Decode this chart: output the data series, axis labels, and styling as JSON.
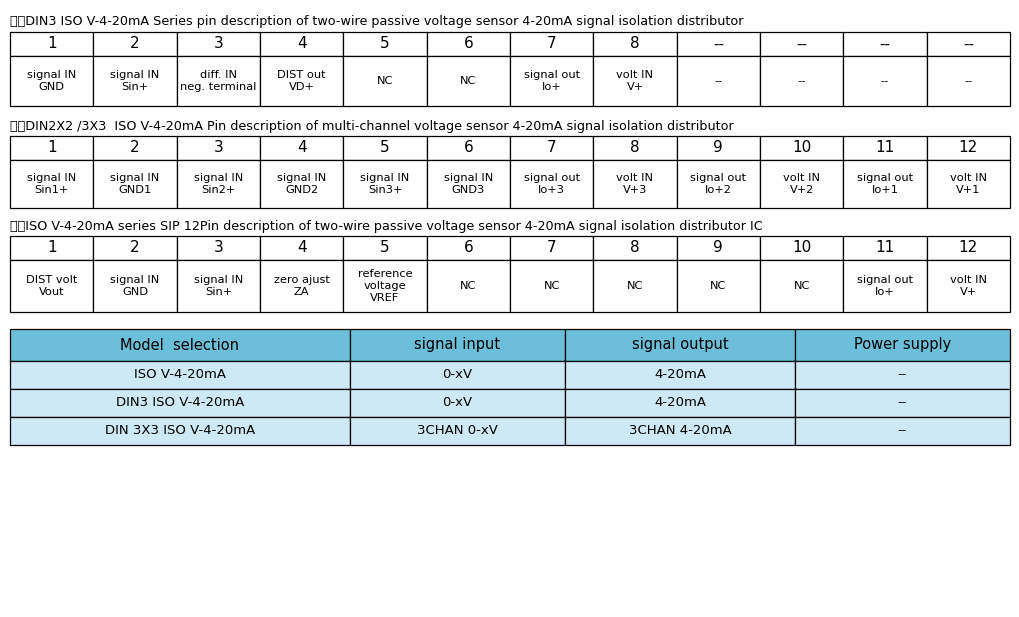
{
  "bg_color": "#ffffff",
  "title1": "一、DIN3 ISO V-4-20mA Series pin description of two-wire passive voltage sensor 4-20mA signal isolation distributor",
  "title2": "二、DIN2X2 /3X3  ISO V-4-20mA Pin description of multi-channel voltage sensor 4-20mA signal isolation distributor",
  "title3": "三、ISO V-4-20mA series SIP 12Pin description of two-wire passive voltage sensor 4-20mA signal isolation distributor IC",
  "table1_header": [
    "1",
    "2",
    "3",
    "4",
    "5",
    "6",
    "7",
    "8",
    "--",
    "--",
    "--",
    "--"
  ],
  "table1_data": [
    [
      "signal IN\nGND",
      "signal IN\nSin+",
      "diff. IN\nneg. terminal",
      "DIST out\nVD+",
      "NC",
      "NC",
      "signal out\nIo+",
      "volt IN\nV+",
      "--",
      "--",
      "--",
      "--"
    ]
  ],
  "table2_header": [
    "1",
    "2",
    "3",
    "4",
    "5",
    "6",
    "7",
    "8",
    "9",
    "10",
    "11",
    "12"
  ],
  "table2_data": [
    [
      "signal IN\nSin1+",
      "signal IN\nGND1",
      "signal IN\nSin2+",
      "signal IN\nGND2",
      "signal IN\nSin3+",
      "signal IN\nGND3",
      "signal out\nIo+3",
      "volt IN\nV+3",
      "signal out\nIo+2",
      "volt IN\nV+2",
      "signal out\nIo+1",
      "volt IN\nV+1"
    ]
  ],
  "table3_header": [
    "1",
    "2",
    "3",
    "4",
    "5",
    "6",
    "7",
    "8",
    "9",
    "10",
    "11",
    "12"
  ],
  "table3_data": [
    [
      "DIST volt\nVout",
      "signal IN\nGND",
      "signal IN\nSin+",
      "zero ajust\nZA",
      "reference\nvoltage\nVREF",
      "NC",
      "NC",
      "NC",
      "NC",
      "NC",
      "signal out\nIo+",
      "volt IN\nV+"
    ]
  ],
  "table4_header": [
    "Model  selection",
    "signal input",
    "signal output",
    "Power supply"
  ],
  "table4_data": [
    [
      "ISO V-4-20mA",
      "0-xV",
      "4-20mA",
      "--"
    ],
    [
      "DIN3 ISO V-4-20mA",
      "0-xV",
      "4-20mA",
      "--"
    ],
    [
      "DIN 3X3 ISO V-4-20mA",
      "3CHAN 0-xV",
      "3CHAN 4-20mA",
      "--"
    ]
  ],
  "table4_header_bg": "#6bbfd8",
  "table4_row_bg": "#cce9f5",
  "border_color": "#000000",
  "text_color": "#000000",
  "title_fontsize": 9.2,
  "num_header_fontsize": 11,
  "data_fontsize": 8.2,
  "t4_header_fontsize": 10.5,
  "t4_data_fontsize": 9.5
}
